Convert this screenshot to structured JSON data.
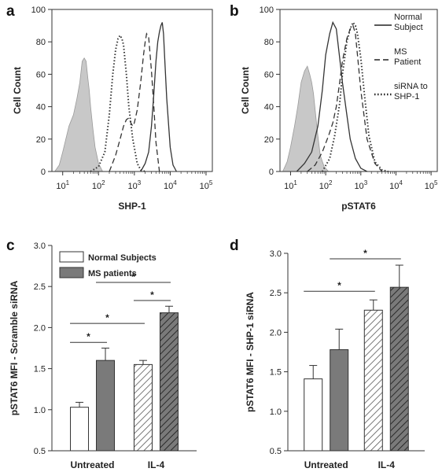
{
  "chart_data": [
    {
      "panel": "a",
      "type": "line",
      "subtype": "histogram-overlay",
      "xlabel": "SHP-1",
      "ylabel": "Cell Count",
      "x_scale": "log",
      "xlim": [
        5,
        150000
      ],
      "ylim": [
        0,
        100
      ],
      "x_tick_bases": [
        "10",
        "10",
        "10",
        "10",
        "10"
      ],
      "x_tick_exponents": [
        "1",
        "2",
        "3",
        "4",
        "5"
      ],
      "x_ticks": [
        10,
        100,
        1000,
        10000,
        100000
      ],
      "y_ticks": [
        "0",
        "20",
        "40",
        "60",
        "80",
        "100"
      ],
      "series": [
        {
          "style": "shaded",
          "color": "#c8c8c8",
          "x": [
            6,
            8,
            10,
            15,
            20,
            25,
            30,
            35,
            40,
            45,
            50,
            55,
            60,
            70,
            80,
            100,
            130
          ],
          "y": [
            0,
            4,
            12,
            28,
            35,
            45,
            55,
            68,
            70,
            68,
            58,
            50,
            40,
            26,
            15,
            5,
            0
          ]
        },
        {
          "style": "dotted",
          "color": "#333333",
          "x": [
            60,
            100,
            150,
            200,
            250,
            300,
            350,
            400,
            450,
            500,
            600,
            700,
            900,
            1200,
            1500,
            2000
          ],
          "y": [
            0,
            3,
            12,
            35,
            60,
            75,
            82,
            84,
            82,
            78,
            60,
            40,
            20,
            5,
            1,
            0
          ]
        },
        {
          "style": "dashed",
          "color": "#333333",
          "x": [
            200,
            300,
            400,
            500,
            600,
            700,
            800,
            900,
            1000,
            1200,
            1500,
            1800,
            2000,
            2200,
            2500,
            3000,
            3500,
            4000,
            5000
          ],
          "y": [
            0,
            10,
            20,
            28,
            32,
            33,
            30,
            28,
            30,
            38,
            55,
            72,
            80,
            85,
            83,
            62,
            40,
            18,
            0
          ]
        },
        {
          "style": "solid",
          "color": "#333333",
          "x": [
            1500,
            2000,
            2500,
            3000,
            3500,
            4000,
            4500,
            5000,
            5500,
            6000,
            6500,
            7000,
            8000,
            10000,
            12000,
            15000
          ],
          "y": [
            0,
            5,
            12,
            28,
            48,
            68,
            80,
            86,
            90,
            92,
            85,
            70,
            45,
            15,
            4,
            0
          ]
        }
      ]
    },
    {
      "panel": "b",
      "type": "line",
      "subtype": "histogram-overlay",
      "xlabel": "pSTAT6",
      "ylabel": "Cell Count",
      "x_scale": "log",
      "xlim": [
        5,
        150000
      ],
      "ylim": [
        0,
        100
      ],
      "x_tick_bases": [
        "10",
        "10",
        "10",
        "10",
        "10"
      ],
      "x_tick_exponents": [
        "1",
        "2",
        "3",
        "4",
        "5"
      ],
      "x_ticks": [
        10,
        100,
        1000,
        10000,
        100000
      ],
      "y_ticks": [
        "0",
        "20",
        "40",
        "60",
        "80",
        "100"
      ],
      "legend": [
        {
          "lines": [
            "Normal",
            "Subject"
          ],
          "style": "solid"
        },
        {
          "lines": [
            "MS",
            "Patient"
          ],
          "style": "dashed"
        },
        {
          "lines": [
            "siRNA to",
            "SHP-1"
          ],
          "style": "dotted"
        }
      ],
      "series": [
        {
          "style": "shaded",
          "color": "#c8c8c8",
          "x": [
            6,
            8,
            10,
            13,
            16,
            20,
            25,
            30,
            35,
            40,
            45,
            50,
            60,
            70,
            90,
            120
          ],
          "y": [
            0,
            6,
            15,
            28,
            40,
            55,
            62,
            65,
            60,
            55,
            48,
            38,
            22,
            10,
            3,
            0
          ]
        },
        {
          "style": "solid",
          "color": "#333333",
          "x": [
            15,
            25,
            40,
            60,
            80,
            100,
            130,
            160,
            200,
            250,
            300,
            400,
            500,
            700,
            1000,
            1500
          ],
          "y": [
            0,
            5,
            12,
            28,
            50,
            72,
            85,
            92,
            88,
            70,
            55,
            35,
            20,
            8,
            2,
            0
          ]
        },
        {
          "style": "dashed",
          "color": "#333333",
          "x": [
            30,
            50,
            80,
            120,
            160,
            200,
            250,
            300,
            400,
            500,
            600,
            700,
            800,
            1000,
            1500,
            2500,
            4000
          ],
          "y": [
            0,
            4,
            12,
            22,
            30,
            40,
            55,
            68,
            82,
            88,
            90,
            85,
            72,
            50,
            20,
            5,
            0
          ]
        },
        {
          "style": "dotted",
          "color": "#333333",
          "x": [
            80,
            130,
            180,
            250,
            300,
            400,
            500,
            600,
            700,
            800,
            1000,
            1300,
            1700,
            2500,
            4000,
            6000
          ],
          "y": [
            0,
            8,
            22,
            42,
            60,
            80,
            88,
            92,
            90,
            85,
            70,
            45,
            22,
            6,
            1,
            0
          ]
        }
      ]
    },
    {
      "panel": "c",
      "type": "bar",
      "ylabel": "pSTAT6 MFI - Scramble siRNA",
      "ylim": [
        0.5,
        3.0
      ],
      "y_ticks": [
        "0.5",
        "1.0",
        "1.5",
        "2.0",
        "2.5",
        "3.0"
      ],
      "categories": [
        "Untreated",
        "IL-4"
      ],
      "legend": [
        "Normal Subjects",
        "MS patients"
      ],
      "series": [
        {
          "name": "Normal Subjects",
          "values": [
            1.03,
            1.55
          ],
          "errors": [
            0.06,
            0.05
          ],
          "fills": [
            "white",
            "hatch-light"
          ]
        },
        {
          "name": "MS patients",
          "values": [
            1.6,
            2.18
          ],
          "errors": [
            0.15,
            0.08
          ],
          "fills": [
            "gray",
            "hatch-dark"
          ]
        }
      ],
      "significance": [
        {
          "from": [
            0,
            0
          ],
          "to": [
            0,
            1
          ],
          "level": 1.82,
          "label": "*"
        },
        {
          "from": [
            0,
            0
          ],
          "to": [
            1,
            0
          ],
          "level": 2.05,
          "label": "*"
        },
        {
          "from": [
            1,
            0
          ],
          "to": [
            1,
            1
          ],
          "level": 2.33,
          "label": "*"
        },
        {
          "from": [
            0,
            1
          ],
          "to": [
            1,
            1
          ],
          "level": 2.55,
          "label": "*"
        }
      ]
    },
    {
      "panel": "d",
      "type": "bar",
      "ylabel": "pSTAT6 MFI - SHP-1 siRNA",
      "ylim": [
        0.5,
        3.0
      ],
      "y_ticks": [
        "0.5",
        "1.0",
        "1.5",
        "2.0",
        "2.5",
        "3.0"
      ],
      "categories": [
        "Untreated",
        "IL-4"
      ],
      "series": [
        {
          "name": "Normal Subjects",
          "values": [
            1.41,
            2.28
          ],
          "errors": [
            0.17,
            0.13
          ],
          "fills": [
            "white",
            "hatch-light"
          ]
        },
        {
          "name": "MS patients",
          "values": [
            1.78,
            2.57
          ],
          "errors": [
            0.26,
            0.28
          ],
          "fills": [
            "gray",
            "hatch-dark"
          ]
        }
      ],
      "significance": [
        {
          "from": [
            0,
            0
          ],
          "to": [
            1,
            0
          ],
          "level": 2.52,
          "label": "*"
        },
        {
          "from": [
            0,
            1
          ],
          "to": [
            1,
            1
          ],
          "level": 2.93,
          "label": "*"
        }
      ]
    }
  ]
}
